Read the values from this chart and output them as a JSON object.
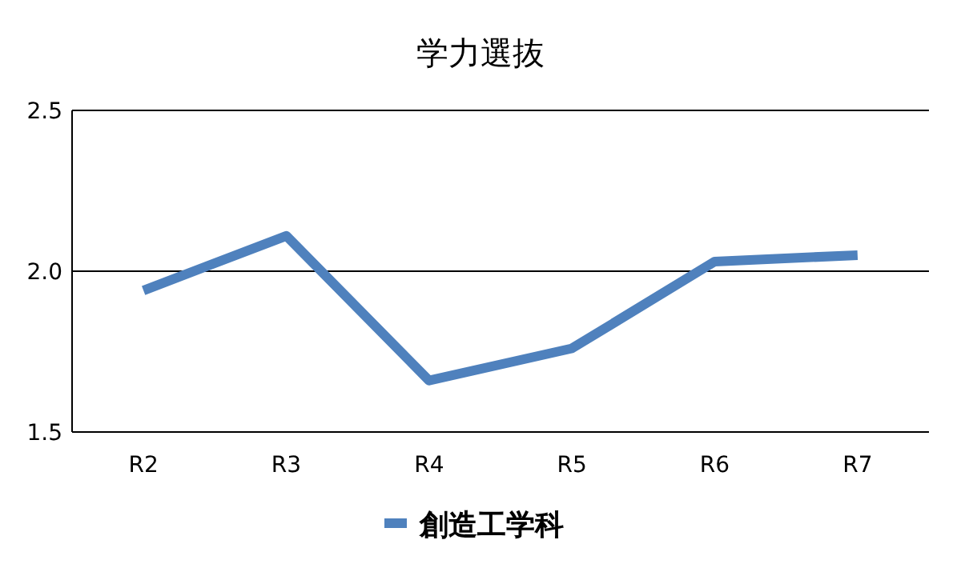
{
  "chart_data": {
    "type": "line",
    "title": "学力選抜",
    "categories": [
      "R2",
      "R3",
      "R4",
      "R5",
      "R6",
      "R7"
    ],
    "series": [
      {
        "name": "創造工学科",
        "color": "#4f81bd",
        "values": [
          1.94,
          2.11,
          1.66,
          1.76,
          2.03,
          2.05
        ]
      }
    ],
    "ylim": [
      1.5,
      2.5
    ],
    "yticks": [
      {
        "value": 1.5,
        "label": "1.5"
      },
      {
        "value": 2.0,
        "label": "2.0"
      },
      {
        "value": 2.5,
        "label": "2.5"
      }
    ],
    "grid": "y",
    "legend": "bottom"
  }
}
